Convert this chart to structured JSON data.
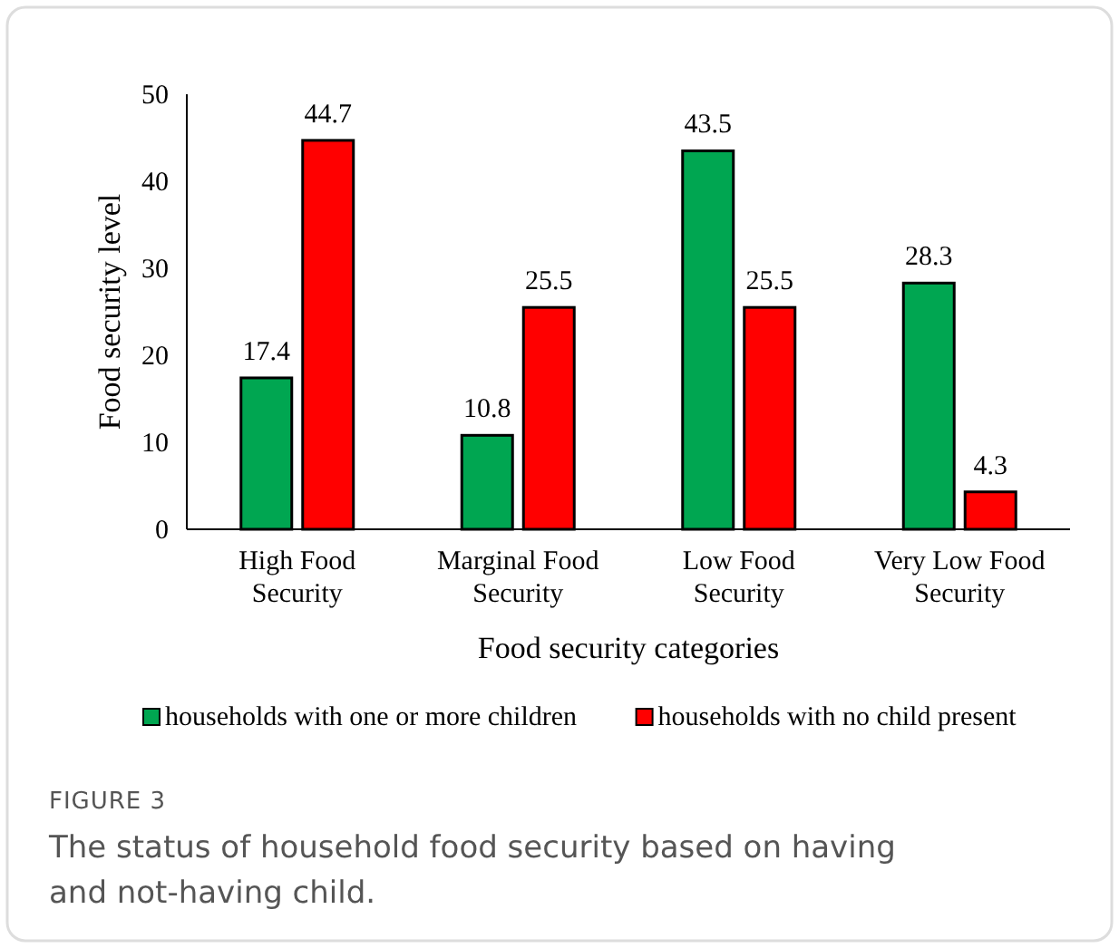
{
  "chart_data": {
    "type": "bar",
    "xlabel": "Food security categories",
    "ylabel": "Food security level",
    "categories": [
      "High Food Security",
      "Marginal Food Security",
      "Low Food Security",
      "Very Low Food Security"
    ],
    "series": [
      {
        "name": "households with one or more children",
        "color": "#00a651",
        "values": [
          17.4,
          10.8,
          43.5,
          28.3
        ]
      },
      {
        "name": "households with no child present",
        "color": "#ff0000",
        "values": [
          44.7,
          25.5,
          25.5,
          4.3
        ]
      }
    ],
    "ylim": [
      0,
      50
    ],
    "yticks": [
      0,
      10,
      20,
      30,
      40,
      50
    ],
    "grid": false,
    "legend": "bottom",
    "data_labels": true,
    "annotations": [
      "FIGURE 3",
      "The status of household food security based on having and not-having child."
    ]
  }
}
